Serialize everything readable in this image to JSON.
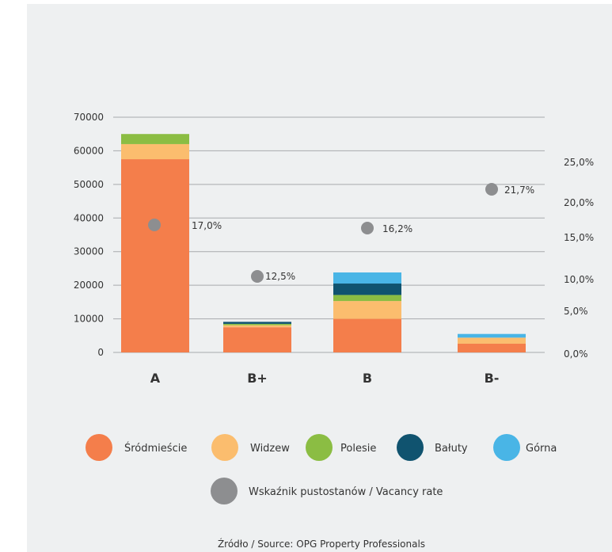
{
  "chart_data": {
    "type": "bar",
    "stacked": true,
    "categories": [
      "A",
      "B+",
      "B",
      "B-"
    ],
    "y_left": {
      "ticks": [
        0,
        10000,
        20000,
        30000,
        40000,
        50000,
        60000,
        70000
      ],
      "range": [
        0,
        70000
      ]
    },
    "y_right": {
      "ticks": [
        0.0,
        5.0,
        10.0,
        15.0,
        20.0,
        25.0
      ],
      "tick_labels": [
        "0,0%",
        "5,0%",
        "10,0%",
        "15,0%",
        "20,0%",
        "25,0%"
      ]
    },
    "series": [
      {
        "name": "Śródmieście",
        "color": "#f47e4b",
        "values": [
          57500,
          7500,
          10000,
          2600
        ]
      },
      {
        "name": "Widzew",
        "color": "#fbbd6e",
        "values": [
          4500,
          600,
          5300,
          1800
        ]
      },
      {
        "name": "Polesie",
        "color": "#8bbd43",
        "values": [
          3000,
          400,
          1800,
          0
        ]
      },
      {
        "name": "Bałuty",
        "color": "#10536f",
        "values": [
          0,
          600,
          3400,
          0
        ]
      },
      {
        "name": "Górna",
        "color": "#49b5e6",
        "values": [
          0,
          0,
          3300,
          1100
        ]
      }
    ],
    "vacancy": {
      "name": "Wskaźnik pustostanów  / Vacancy rate",
      "color": "#8d8e90",
      "values": [
        17.0,
        12.5,
        16.2,
        21.7
      ],
      "labels": [
        "17,0%",
        "12,5%",
        "16,2%",
        "21,7%"
      ]
    },
    "grid": true,
    "legend_position": "bottom"
  },
  "source": "Źródło / Source: OPG Property Professionals"
}
